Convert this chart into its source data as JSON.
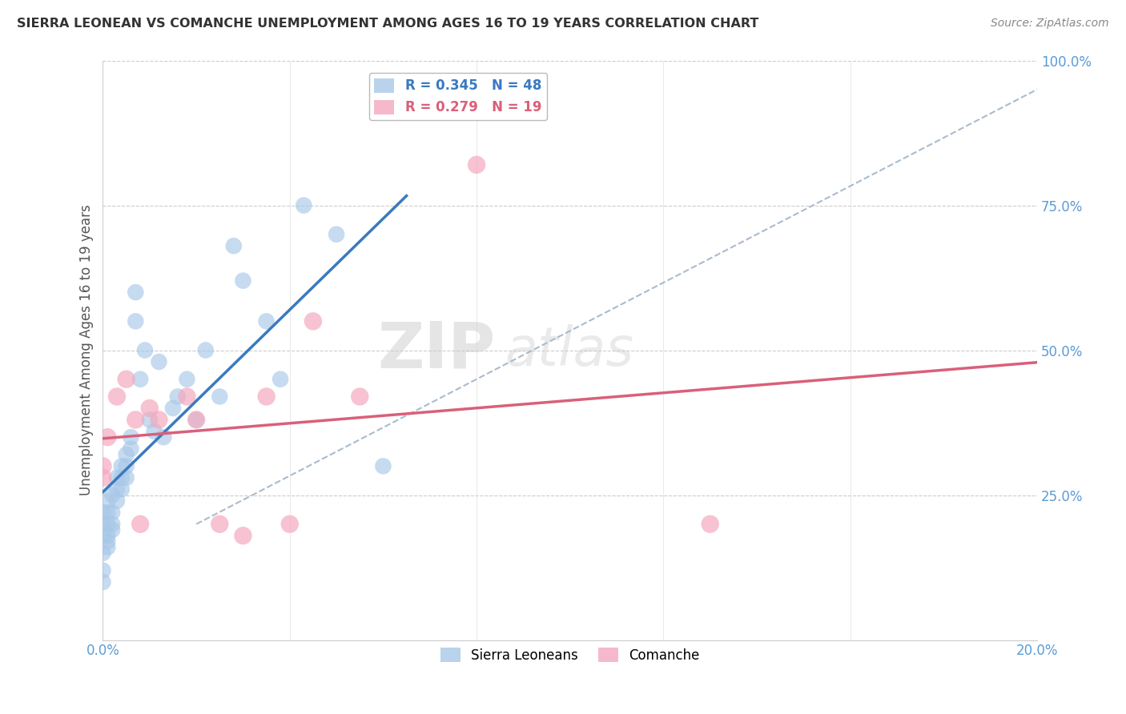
{
  "title": "SIERRA LEONEAN VS COMANCHE UNEMPLOYMENT AMONG AGES 16 TO 19 YEARS CORRELATION CHART",
  "source": "Source: ZipAtlas.com",
  "ylabel": "Unemployment Among Ages 16 to 19 years",
  "legend1_label": "R = 0.345   N = 48",
  "legend2_label": "R = 0.279   N = 19",
  "sierra_color": "#a8c8e8",
  "comanche_color": "#f4a8be",
  "sierra_line_color": "#3a7abf",
  "comanche_line_color": "#d9607a",
  "dash_line_color": "#aabbcc",
  "watermark_zip": "ZIP",
  "watermark_atlas": "atlas",
  "sierra_x": [
    0.0,
    0.0,
    0.0,
    0.0,
    0.0,
    0.0,
    0.001,
    0.001,
    0.001,
    0.001,
    0.001,
    0.001,
    0.002,
    0.002,
    0.002,
    0.002,
    0.003,
    0.003,
    0.003,
    0.004,
    0.004,
    0.004,
    0.005,
    0.005,
    0.005,
    0.006,
    0.006,
    0.007,
    0.007,
    0.008,
    0.009,
    0.01,
    0.011,
    0.012,
    0.013,
    0.015,
    0.016,
    0.018,
    0.02,
    0.022,
    0.025,
    0.028,
    0.03,
    0.035,
    0.038,
    0.043,
    0.05,
    0.06
  ],
  "sierra_y": [
    0.2,
    0.22,
    0.18,
    0.15,
    0.12,
    0.1,
    0.22,
    0.24,
    0.2,
    0.18,
    0.17,
    0.16,
    0.25,
    0.22,
    0.2,
    0.19,
    0.28,
    0.26,
    0.24,
    0.3,
    0.28,
    0.26,
    0.32,
    0.3,
    0.28,
    0.35,
    0.33,
    0.6,
    0.55,
    0.45,
    0.5,
    0.38,
    0.36,
    0.48,
    0.35,
    0.4,
    0.42,
    0.45,
    0.38,
    0.5,
    0.42,
    0.68,
    0.62,
    0.55,
    0.45,
    0.75,
    0.7,
    0.3
  ],
  "comanche_x": [
    0.0,
    0.0,
    0.001,
    0.003,
    0.005,
    0.007,
    0.008,
    0.01,
    0.012,
    0.018,
    0.02,
    0.025,
    0.03,
    0.035,
    0.04,
    0.045,
    0.055,
    0.08,
    0.13
  ],
  "comanche_y": [
    0.3,
    0.28,
    0.35,
    0.42,
    0.45,
    0.38,
    0.2,
    0.4,
    0.38,
    0.42,
    0.38,
    0.2,
    0.18,
    0.42,
    0.2,
    0.55,
    0.42,
    0.82,
    0.2
  ],
  "xlim": [
    0.0,
    0.2
  ],
  "ylim": [
    0.0,
    1.0
  ],
  "ytick_vals": [
    0.0,
    0.25,
    0.5,
    0.75,
    1.0
  ],
  "ytick_labels": [
    "",
    "25.0%",
    "50.0%",
    "75.0%",
    "100.0%"
  ],
  "xtick_vals": [
    0.0,
    0.04,
    0.08,
    0.12,
    0.16,
    0.2
  ],
  "xtick_labels": [
    "0.0%",
    "",
    "",
    "",
    "",
    "20.0%"
  ]
}
